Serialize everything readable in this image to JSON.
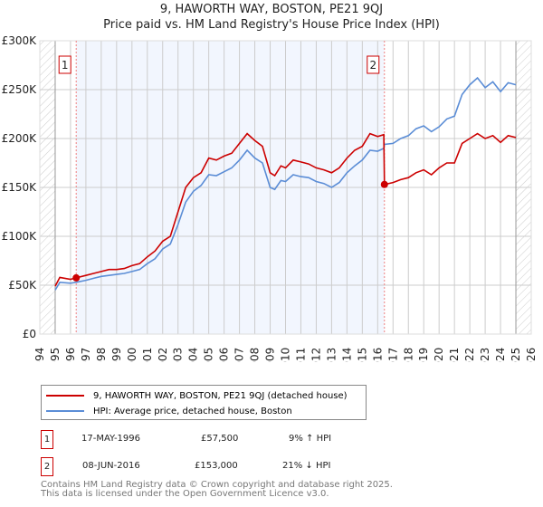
{
  "title": "9, HAWORTH WAY, BOSTON, PE21 9QJ",
  "subtitle": "Price paid vs. HM Land Registry's House Price Index (HPI)",
  "chart_data": {
    "type": "line",
    "title": "9, HAWORTH WAY, BOSTON, PE21 9QJ",
    "subtitle": "Price paid vs. HM Land Registry's House Price Index (HPI)",
    "xlim": [
      1994,
      2026
    ],
    "ylim": [
      0,
      300000
    ],
    "x_ticks": [
      "1994",
      "1995",
      "1996",
      "1997",
      "1998",
      "1999",
      "2000",
      "2001",
      "2002",
      "2003",
      "2004",
      "2005",
      "2006",
      "2007",
      "2008",
      "2009",
      "2010",
      "2011",
      "2012",
      "2013",
      "2014",
      "2015",
      "2016",
      "2017",
      "2018",
      "2019",
      "2020",
      "2021",
      "2022",
      "2023",
      "2024",
      "2025",
      "2026"
    ],
    "y_ticks": [
      {
        "v": 0,
        "label": "£0"
      },
      {
        "v": 50000,
        "label": "£50K"
      },
      {
        "v": 100000,
        "label": "£100K"
      },
      {
        "v": 150000,
        "label": "£150K"
      },
      {
        "v": 200000,
        "label": "£200K"
      },
      {
        "v": 250000,
        "label": "£250K"
      },
      {
        "v": 300000,
        "label": "£300K"
      }
    ],
    "grid": true,
    "shaded_range": [
      1996.37,
      2016.44
    ],
    "hatched_ranges": [
      [
        1994,
        1995
      ],
      [
        2025,
        2026
      ]
    ],
    "series": [
      {
        "name": "9, HAWORTH WAY, BOSTON, PE21 9QJ (detached house)",
        "color": "#cc0000",
        "x": [
          1995,
          1995.3,
          1996,
          1996.37,
          1997,
          1997.5,
          1998,
          1998.5,
          1999,
          1999.5,
          2000,
          2000.5,
          2001,
          2001.5,
          2002,
          2002.5,
          2003,
          2003.5,
          2004,
          2004.5,
          2005,
          2005.5,
          2006,
          2006.5,
          2007,
          2007.5,
          2008,
          2008.5,
          2009,
          2009.3,
          2009.7,
          2010,
          2010.5,
          2011,
          2011.5,
          2012,
          2012.5,
          2013,
          2013.5,
          2014,
          2014.5,
          2015,
          2015.5,
          2016,
          2016.4,
          2016.44,
          2017,
          2017.5,
          2018,
          2018.5,
          2019,
          2019.5,
          2020,
          2020.5,
          2021,
          2021.5,
          2022,
          2022.5,
          2023,
          2023.5,
          2024,
          2024.5,
          2025
        ],
        "y": [
          49000,
          58000,
          56000,
          57500,
          60000,
          62000,
          64000,
          66000,
          66000,
          67000,
          70000,
          72000,
          79000,
          85000,
          95000,
          100000,
          125000,
          150000,
          160000,
          165000,
          180000,
          178000,
          182000,
          185000,
          195000,
          205000,
          198000,
          192000,
          165000,
          162000,
          172000,
          170000,
          178000,
          176000,
          174000,
          170000,
          168000,
          165000,
          170000,
          180000,
          188000,
          192000,
          205000,
          202000,
          204000,
          153000,
          155000,
          158000,
          160000,
          165000,
          168000,
          163000,
          170000,
          175000,
          175000,
          195000,
          200000,
          205000,
          200000,
          203000,
          196000,
          203000,
          201000
        ]
      },
      {
        "name": "HPI: Average price, detached house, Boston",
        "color": "#5b8dd6",
        "x": [
          1995,
          1995.3,
          1996,
          1996.37,
          1997,
          1997.5,
          1998,
          1998.5,
          1999,
          1999.5,
          2000,
          2000.5,
          2001,
          2001.5,
          2002,
          2002.5,
          2003,
          2003.5,
          2004,
          2004.5,
          2005,
          2005.5,
          2006,
          2006.5,
          2007,
          2007.5,
          2008,
          2008.5,
          2009,
          2009.3,
          2009.7,
          2010,
          2010.5,
          2011,
          2011.5,
          2012,
          2012.5,
          2013,
          2013.5,
          2014,
          2014.5,
          2015,
          2015.5,
          2016,
          2016.4,
          2016.44,
          2017,
          2017.5,
          2018,
          2018.5,
          2019,
          2019.5,
          2020,
          2020.5,
          2021,
          2021.5,
          2022,
          2022.5,
          2023,
          2023.5,
          2024,
          2024.5,
          2025
        ],
        "y": [
          45000,
          53000,
          52000,
          53000,
          55000,
          57000,
          59000,
          60000,
          61000,
          62000,
          64000,
          66000,
          72000,
          77000,
          87000,
          92000,
          112000,
          135000,
          146000,
          152000,
          163000,
          162000,
          166000,
          170000,
          178000,
          188000,
          180000,
          175000,
          150000,
          148000,
          157000,
          156000,
          163000,
          161000,
          160000,
          156000,
          154000,
          150000,
          155000,
          165000,
          172000,
          178000,
          188000,
          187000,
          190000,
          194000,
          195000,
          200000,
          203000,
          210000,
          213000,
          207000,
          212000,
          220000,
          223000,
          245000,
          255000,
          262000,
          252000,
          258000,
          248000,
          257000,
          255000
        ]
      }
    ],
    "sales": [
      {
        "id": "1",
        "x": 1996.37,
        "y": 57500
      },
      {
        "id": "2",
        "x": 2016.44,
        "y": 153000
      }
    ]
  },
  "legend": [
    {
      "label": "9, HAWORTH WAY, BOSTON, PE21 9QJ (detached house)",
      "color": "#cc0000"
    },
    {
      "label": "HPI: Average price, detached house, Boston",
      "color": "#5b8dd6"
    }
  ],
  "annotations": [
    {
      "id": "1",
      "date": "17-MAY-1996",
      "price": "£57,500",
      "hpi": "9% ↑ HPI"
    },
    {
      "id": "2",
      "date": "08-JUN-2016",
      "price": "£153,000",
      "hpi": "21% ↓ HPI"
    }
  ],
  "footer": [
    "Contains HM Land Registry data © Crown copyright and database right 2025.",
    "This data is licensed under the Open Government Licence v3.0."
  ]
}
